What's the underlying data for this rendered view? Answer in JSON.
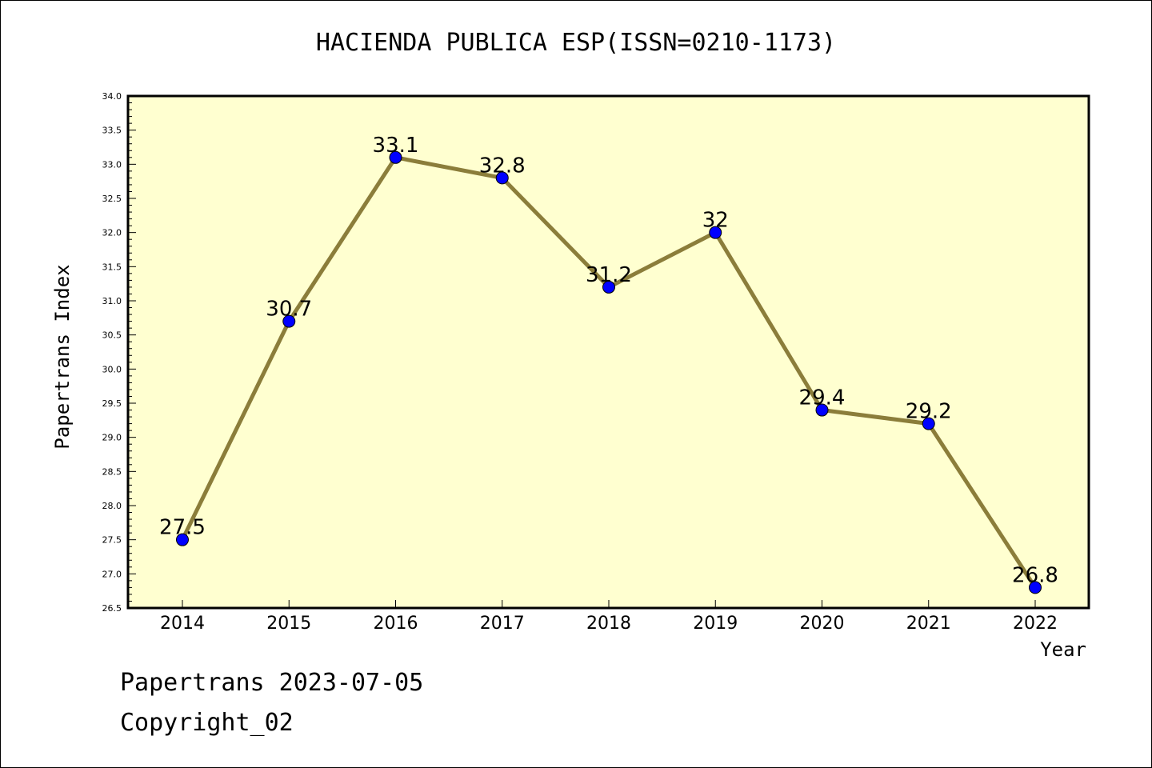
{
  "chart_data": {
    "type": "line",
    "title": "HACIENDA PUBLICA ESP(ISSN=0210-1173)",
    "xlabel": "Year",
    "ylabel": "Papertrans Index",
    "ylim": [
      26.5,
      34.0
    ],
    "yticks": [
      "26.5",
      "27.0",
      "27.5",
      "28.0",
      "28.5",
      "29.0",
      "29.5",
      "30.0",
      "30.5",
      "31.0",
      "31.5",
      "32.0",
      "32.5",
      "33.0",
      "33.5",
      "34.0"
    ],
    "x": [
      "2014",
      "2015",
      "2016",
      "2017",
      "2018",
      "2019",
      "2020",
      "2021",
      "2022"
    ],
    "values": [
      27.5,
      30.7,
      33.1,
      32.8,
      31.2,
      32.0,
      29.4,
      29.2,
      26.8
    ],
    "data_labels": [
      "27.5",
      "30.7",
      "33.1",
      "32.8",
      "31.2",
      "32",
      "29.4",
      "29.2",
      "26.8"
    ],
    "grid": false,
    "line_color": "#8b7d3a",
    "marker_color": "#0000ff",
    "plot_background": "#ffffd0"
  },
  "footer": {
    "line1": "Papertrans 2023-07-05",
    "line2": "Copyright_02"
  }
}
